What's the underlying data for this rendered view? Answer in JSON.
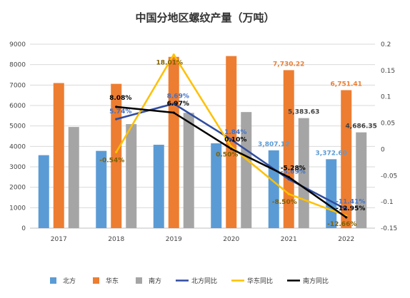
{
  "chart_data": {
    "type": "bar",
    "title": "中国分地区螺纹产量（万吨）",
    "categories": [
      "2017",
      "2018",
      "2019",
      "2020",
      "2021",
      "2022"
    ],
    "y_left": {
      "min": 0,
      "max": 9000,
      "step": 1000,
      "ticks": [
        "0",
        "1000",
        "2000",
        "3000",
        "4000",
        "5000",
        "6000",
        "7000",
        "8000",
        "9000"
      ]
    },
    "y_right": {
      "min": -0.15,
      "max": 0.2,
      "step": 0.05,
      "ticks": [
        "-0.15",
        "-0.1",
        "-0.05",
        "0",
        "0.05",
        "0.1",
        "0.15",
        "0.2"
      ]
    },
    "series": [
      {
        "name": "北方",
        "kind": "bar",
        "color": "#5B9BD5",
        "values": [
          3570,
          3780,
          4080,
          4150,
          3807.12,
          3372.6
        ],
        "labels": [
          "",
          "",
          "",
          "",
          "3,807.12",
          "3,372.60"
        ],
        "label_color": "#5B9BD5"
      },
      {
        "name": "华东",
        "kind": "bar",
        "color": "#ED7D31",
        "values": [
          7100,
          7060,
          8380,
          8420,
          7730.22,
          6751.41
        ],
        "labels": [
          "",
          "",
          "",
          "",
          "7,730.22",
          "6,751.41"
        ],
        "label_color": "#ED7D31"
      },
      {
        "name": "南方",
        "kind": "bar",
        "color": "#A5A5A5",
        "values": [
          4950,
          5090,
          5640,
          5680,
          5383.63,
          4686.35
        ],
        "labels": [
          "",
          "",
          "",
          "",
          "5,383.63",
          "4,686.35"
        ],
        "label_color": "#404040"
      },
      {
        "name": "北方同比",
        "kind": "line",
        "axis": "right",
        "color": "#2F4CA0",
        "values": [
          null,
          0.0574,
          0.0869,
          0.0184,
          -0.0569,
          -0.1141
        ],
        "labels": [
          "",
          "5.74%",
          "8.69%",
          "1.84%",
          "-5.69%",
          "-11.41%"
        ],
        "label_color": "#4472C4"
      },
      {
        "name": "华东同比",
        "kind": "line",
        "axis": "right",
        "color": "#FFC000",
        "values": [
          null,
          -0.0054,
          0.1801,
          0.005,
          -0.085,
          -0.1266
        ],
        "labels": [
          "",
          "-0.54%",
          "18.01%",
          "0.50%",
          "-8.50%",
          "-12.66%"
        ],
        "label_color": "#806000"
      },
      {
        "name": "南方同比",
        "kind": "line",
        "axis": "right",
        "color": "#000000",
        "values": [
          null,
          0.0808,
          0.0697,
          0.001,
          -0.0528,
          -0.1295
        ],
        "labels": [
          "",
          "8.08%",
          "6.97%",
          "0.10%",
          "-5.28%",
          "-12.95%"
        ],
        "label_color": "#000000"
      }
    ],
    "legend_position": "bottom",
    "grid": true
  }
}
